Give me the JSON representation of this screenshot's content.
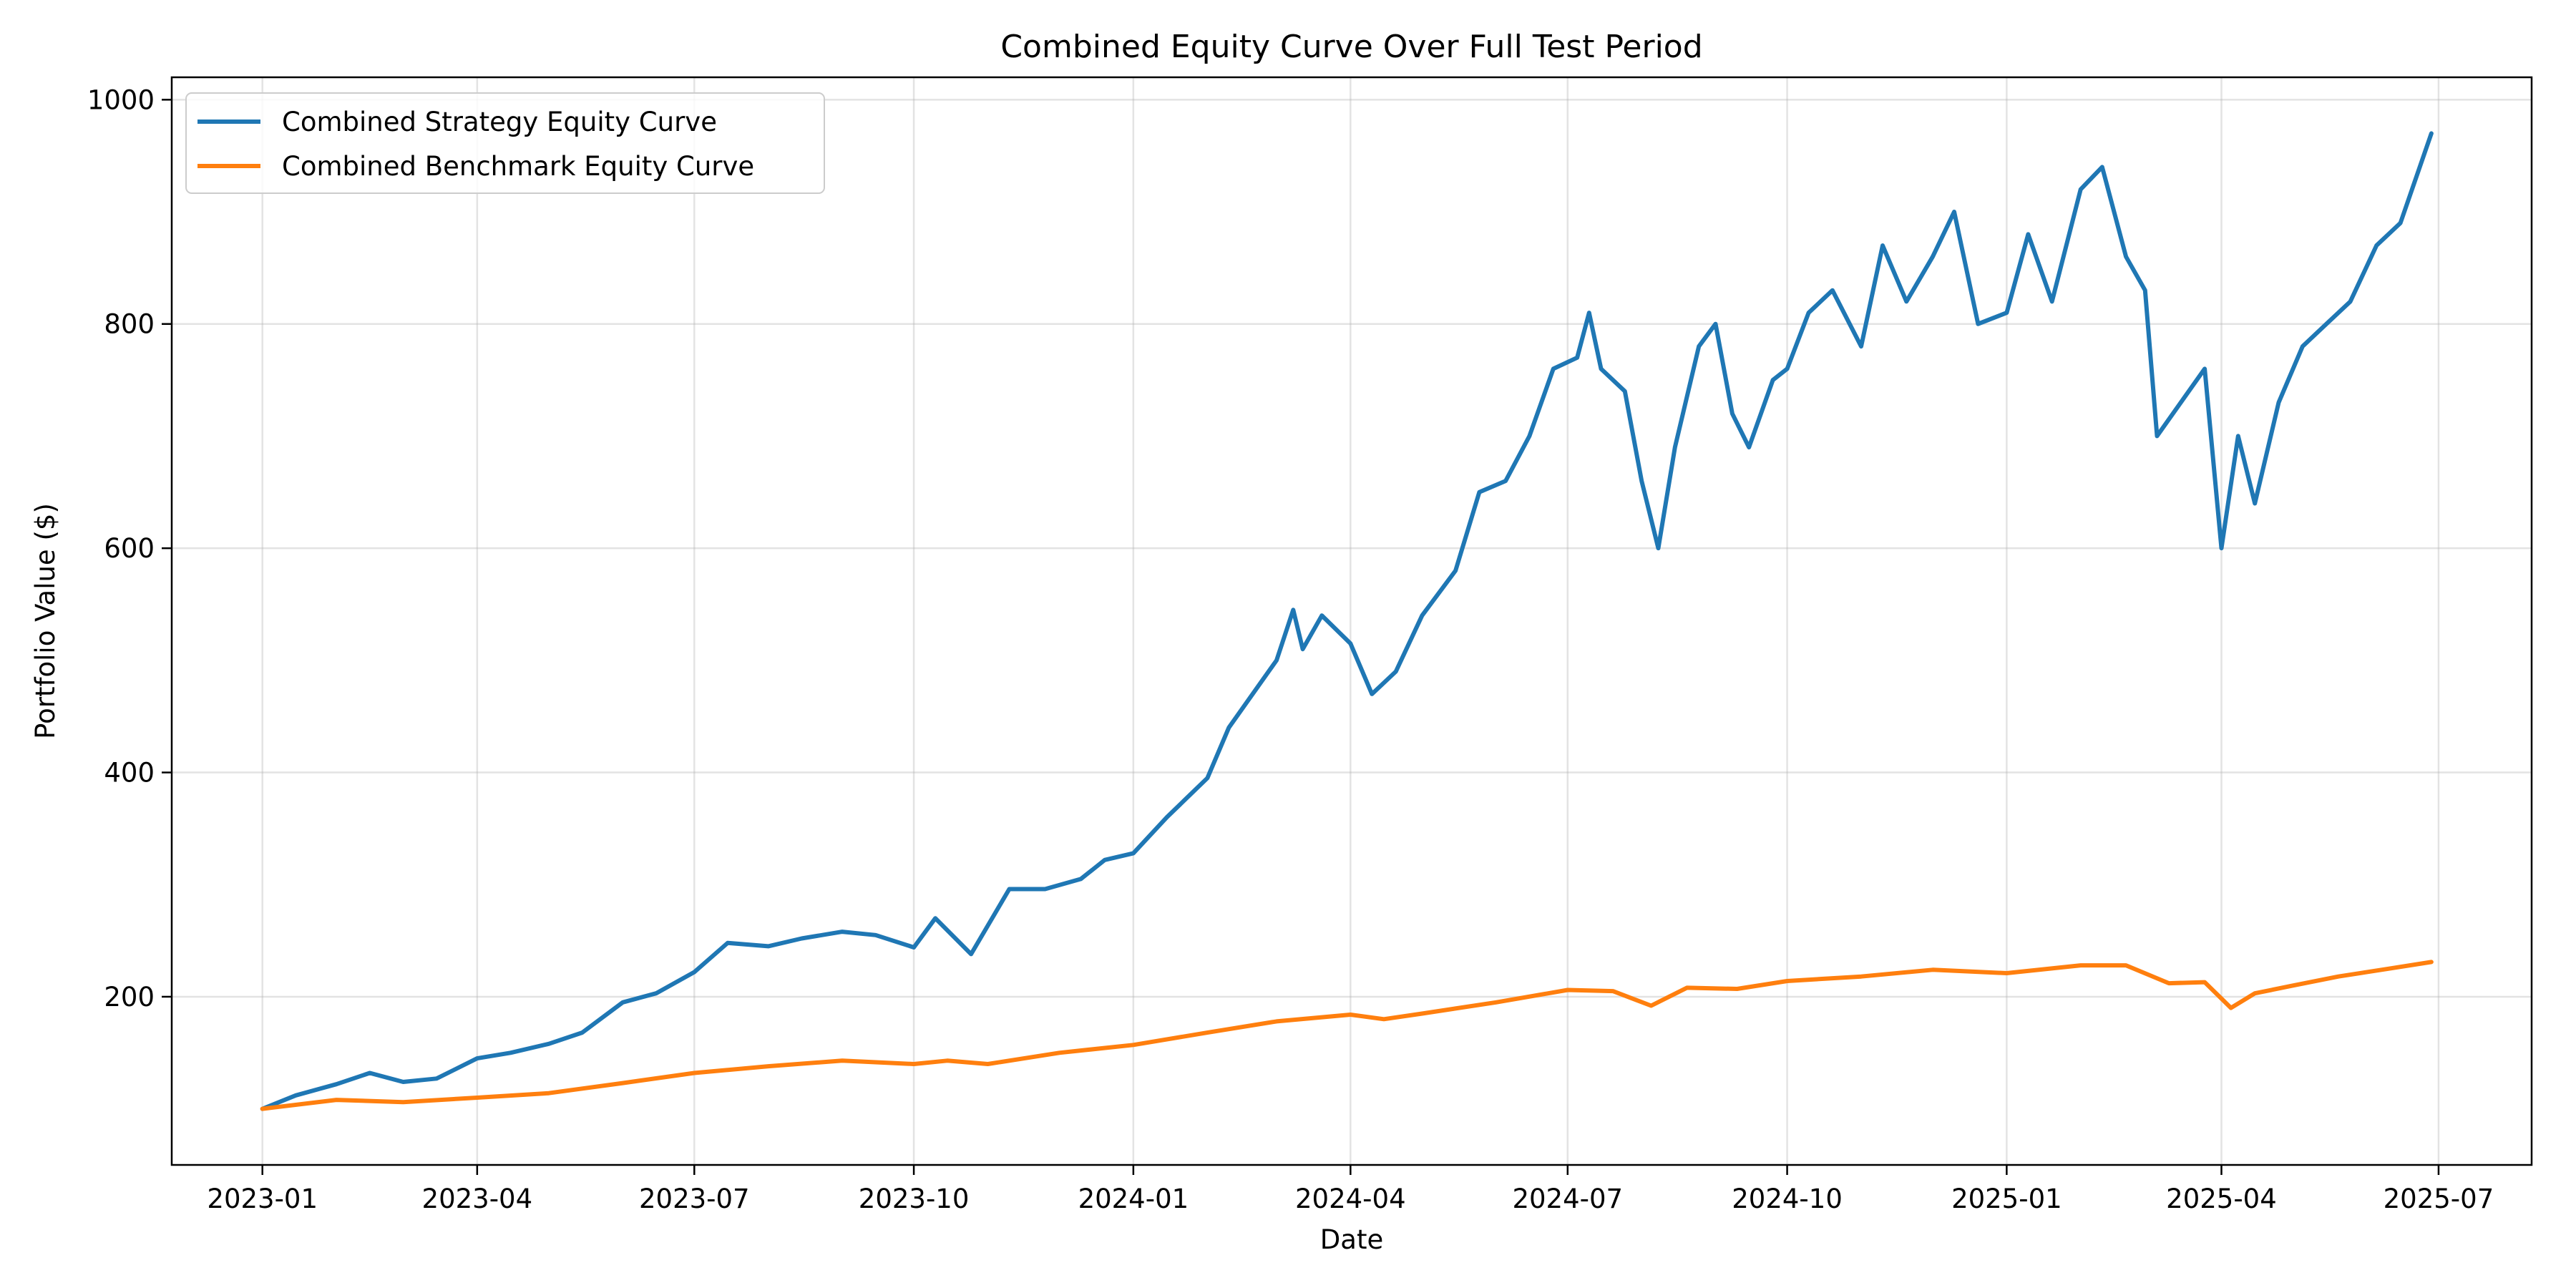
{
  "chart_data": {
    "type": "line",
    "title": "Combined Equity Curve Over Full Test Period",
    "xlabel": "Date",
    "ylabel": "Portfolio Value ($)",
    "xlim": [
      "2022-11-24",
      "2025-08-09"
    ],
    "ylim": [
      50,
      1020
    ],
    "grid": true,
    "legend_position": "top-left",
    "x_ticks": [
      {
        "label": "2023-01",
        "date": "2023-01-01"
      },
      {
        "label": "2023-04",
        "date": "2023-04-01"
      },
      {
        "label": "2023-07",
        "date": "2023-07-01"
      },
      {
        "label": "2023-10",
        "date": "2023-10-01"
      },
      {
        "label": "2024-01",
        "date": "2024-01-01"
      },
      {
        "label": "2024-04",
        "date": "2024-04-01"
      },
      {
        "label": "2024-07",
        "date": "2024-07-01"
      },
      {
        "label": "2024-10",
        "date": "2024-10-01"
      },
      {
        "label": "2025-01",
        "date": "2025-01-01"
      },
      {
        "label": "2025-04",
        "date": "2025-04-01"
      },
      {
        "label": "2025-07",
        "date": "2025-07-01"
      }
    ],
    "y_ticks": [
      200,
      400,
      600,
      800,
      1000
    ],
    "series": [
      {
        "name": "Combined Strategy Equity Curve",
        "color": "#1f77b4",
        "points": [
          [
            "2023-01-01",
            100
          ],
          [
            "2023-01-15",
            112
          ],
          [
            "2023-02-01",
            122
          ],
          [
            "2023-02-15",
            132
          ],
          [
            "2023-03-01",
            124
          ],
          [
            "2023-03-15",
            127
          ],
          [
            "2023-04-01",
            145
          ],
          [
            "2023-04-15",
            150
          ],
          [
            "2023-05-01",
            158
          ],
          [
            "2023-05-15",
            168
          ],
          [
            "2023-06-01",
            195
          ],
          [
            "2023-06-15",
            203
          ],
          [
            "2023-07-01",
            222
          ],
          [
            "2023-07-15",
            248
          ],
          [
            "2023-08-01",
            245
          ],
          [
            "2023-08-15",
            252
          ],
          [
            "2023-09-01",
            258
          ],
          [
            "2023-09-15",
            255
          ],
          [
            "2023-10-01",
            244
          ],
          [
            "2023-10-10",
            270
          ],
          [
            "2023-10-25",
            238
          ],
          [
            "2023-11-10",
            296
          ],
          [
            "2023-11-25",
            296
          ],
          [
            "2023-12-10",
            305
          ],
          [
            "2023-12-20",
            322
          ],
          [
            "2024-01-01",
            328
          ],
          [
            "2024-01-15",
            360
          ],
          [
            "2024-02-01",
            395
          ],
          [
            "2024-02-10",
            440
          ],
          [
            "2024-02-20",
            470
          ],
          [
            "2024-03-01",
            500
          ],
          [
            "2024-03-08",
            545
          ],
          [
            "2024-03-12",
            510
          ],
          [
            "2024-03-20",
            540
          ],
          [
            "2024-04-01",
            515
          ],
          [
            "2024-04-10",
            470
          ],
          [
            "2024-04-20",
            490
          ],
          [
            "2024-05-01",
            540
          ],
          [
            "2024-05-15",
            580
          ],
          [
            "2024-05-25",
            650
          ],
          [
            "2024-06-05",
            660
          ],
          [
            "2024-06-15",
            700
          ],
          [
            "2024-06-25",
            760
          ],
          [
            "2024-07-05",
            770
          ],
          [
            "2024-07-10",
            810
          ],
          [
            "2024-07-15",
            760
          ],
          [
            "2024-07-25",
            740
          ],
          [
            "2024-08-01",
            660
          ],
          [
            "2024-08-08",
            600
          ],
          [
            "2024-08-15",
            690
          ],
          [
            "2024-08-25",
            780
          ],
          [
            "2024-09-01",
            800
          ],
          [
            "2024-09-08",
            720
          ],
          [
            "2024-09-15",
            690
          ],
          [
            "2024-09-25",
            750
          ],
          [
            "2024-10-01",
            760
          ],
          [
            "2024-10-10",
            810
          ],
          [
            "2024-10-20",
            830
          ],
          [
            "2024-11-01",
            780
          ],
          [
            "2024-11-10",
            870
          ],
          [
            "2024-11-20",
            820
          ],
          [
            "2024-12-01",
            860
          ],
          [
            "2024-12-10",
            900
          ],
          [
            "2024-12-20",
            800
          ],
          [
            "2025-01-01",
            810
          ],
          [
            "2025-01-10",
            880
          ],
          [
            "2025-01-20",
            820
          ],
          [
            "2025-02-01",
            920
          ],
          [
            "2025-02-10",
            940
          ],
          [
            "2025-02-20",
            860
          ],
          [
            "2025-02-28",
            830
          ],
          [
            "2025-03-05",
            700
          ],
          [
            "2025-03-15",
            730
          ],
          [
            "2025-03-25",
            760
          ],
          [
            "2025-04-01",
            600
          ],
          [
            "2025-04-08",
            700
          ],
          [
            "2025-04-15",
            640
          ],
          [
            "2025-04-25",
            730
          ],
          [
            "2025-05-05",
            780
          ],
          [
            "2025-05-15",
            800
          ],
          [
            "2025-05-25",
            820
          ],
          [
            "2025-06-05",
            870
          ],
          [
            "2025-06-15",
            890
          ],
          [
            "2025-06-28",
            970
          ]
        ]
      },
      {
        "name": "Combined Benchmark Equity Curve",
        "color": "#ff7f0e",
        "points": [
          [
            "2023-01-01",
            100
          ],
          [
            "2023-02-01",
            108
          ],
          [
            "2023-03-01",
            106
          ],
          [
            "2023-04-01",
            110
          ],
          [
            "2023-05-01",
            114
          ],
          [
            "2023-06-01",
            123
          ],
          [
            "2023-07-01",
            132
          ],
          [
            "2023-08-01",
            138
          ],
          [
            "2023-09-01",
            143
          ],
          [
            "2023-10-01",
            140
          ],
          [
            "2023-10-15",
            143
          ],
          [
            "2023-11-01",
            140
          ],
          [
            "2023-12-01",
            150
          ],
          [
            "2024-01-01",
            157
          ],
          [
            "2024-02-01",
            168
          ],
          [
            "2024-03-01",
            178
          ],
          [
            "2024-04-01",
            184
          ],
          [
            "2024-04-15",
            180
          ],
          [
            "2024-05-01",
            185
          ],
          [
            "2024-06-01",
            195
          ],
          [
            "2024-07-01",
            206
          ],
          [
            "2024-07-20",
            205
          ],
          [
            "2024-08-05",
            192
          ],
          [
            "2024-08-20",
            208
          ],
          [
            "2024-09-10",
            207
          ],
          [
            "2024-10-01",
            214
          ],
          [
            "2024-11-01",
            218
          ],
          [
            "2024-12-01",
            224
          ],
          [
            "2025-01-01",
            221
          ],
          [
            "2025-02-01",
            228
          ],
          [
            "2025-02-20",
            228
          ],
          [
            "2025-03-10",
            212
          ],
          [
            "2025-03-25",
            213
          ],
          [
            "2025-04-05",
            190
          ],
          [
            "2025-04-15",
            203
          ],
          [
            "2025-05-01",
            210
          ],
          [
            "2025-05-20",
            218
          ],
          [
            "2025-06-10",
            225
          ],
          [
            "2025-06-28",
            231
          ]
        ]
      }
    ]
  }
}
